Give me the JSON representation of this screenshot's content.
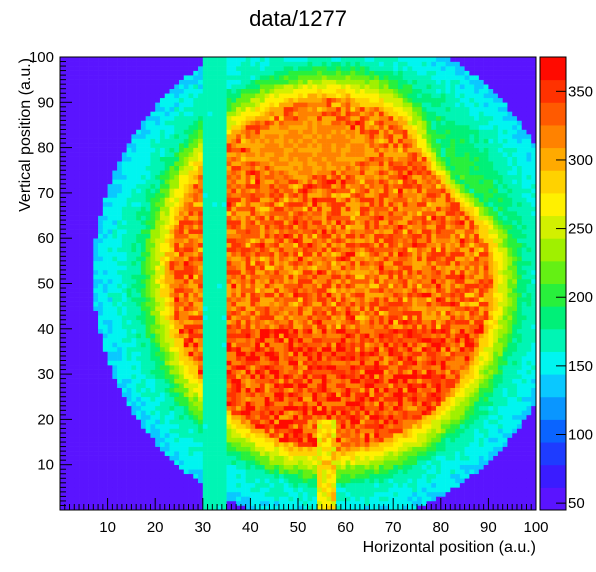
{
  "chart_data": {
    "type": "heatmap",
    "title": "data/1277",
    "xlabel": "Horizontal position (a.u.)",
    "ylabel": "Vertical position (a.u.)",
    "xlim": [
      0,
      100
    ],
    "ylim": [
      0,
      100
    ],
    "zlim": [
      45,
      375
    ],
    "x_ticks": [
      10,
      20,
      30,
      40,
      50,
      60,
      70,
      80,
      90,
      100
    ],
    "y_ticks": [
      10,
      20,
      30,
      40,
      50,
      60,
      70,
      80,
      90,
      100
    ],
    "z_ticks": [
      50,
      100,
      150,
      200,
      250,
      300,
      350
    ],
    "bins": [
      100,
      100
    ],
    "palette": [
      "#5a14ff",
      "#3a1cff",
      "#1e3cff",
      "#0a64ff",
      "#0a96ff",
      "#0ac8ff",
      "#00f5f0",
      "#00f5b4",
      "#00f078",
      "#28f03c",
      "#64f014",
      "#a0f000",
      "#d2f000",
      "#fff000",
      "#ffd200",
      "#ffaa00",
      "#ff8200",
      "#ff5a00",
      "#ff3200",
      "#ff0a00"
    ],
    "features": {
      "blob_center": [
        57,
        52
      ],
      "blob_radius": [
        41,
        47
      ],
      "outer_ring_radius": [
        50,
        55
      ],
      "dead_strip_x": [
        30,
        35.2
      ],
      "dead_strip_value": 160,
      "hot_column_x": [
        35.6,
        36.4
      ],
      "vertical_hot_region_x": [
        54,
        58
      ],
      "notch_upper_right": [
        92,
        80
      ]
    }
  }
}
